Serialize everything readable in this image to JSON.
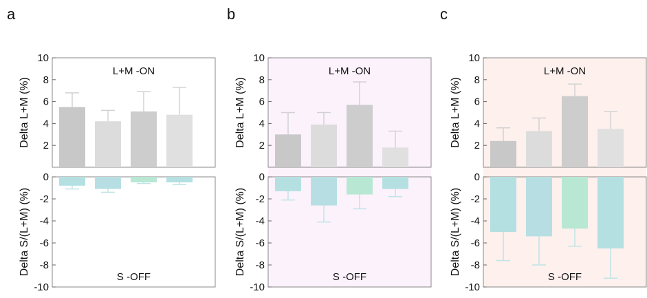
{
  "chart_data": [
    {
      "panel_label": "a",
      "background": "#ffffff",
      "top": {
        "type": "bar",
        "annotation": "L+M -ON",
        "ylabel": "Delta L+M (%)",
        "ylim": [
          0,
          10
        ],
        "yticks": [
          "2",
          "4",
          "6",
          "8",
          "10"
        ],
        "values": [
          5.5,
          4.2,
          5.1,
          4.8
        ],
        "errors": [
          1.3,
          1.0,
          1.8,
          2.5
        ],
        "colors": [
          "#c8c8c8",
          "#dcdcdc",
          "#cdcdcd",
          "#e0e0e0"
        ],
        "error_color": "#d2d2d2"
      },
      "bottom": {
        "type": "bar",
        "annotation": "S -OFF",
        "ylabel": "Delta S/(L+M) (%)",
        "ylim": [
          -10,
          0
        ],
        "yticks": [
          "0",
          "-2",
          "-4",
          "-6",
          "-8",
          "-10"
        ],
        "values": [
          -0.8,
          -1.1,
          -0.5,
          -0.5
        ],
        "errors": [
          0.3,
          0.3,
          0.1,
          0.2
        ],
        "colors": [
          "#b4e0e2",
          "#b7dfe3",
          "#b8e8d4",
          "#b5e0e2"
        ],
        "error_color": "#bfe4e6"
      }
    },
    {
      "panel_label": "b",
      "background": "#fcf2fc",
      "top": {
        "type": "bar",
        "annotation": "L+M -ON",
        "ylabel": "Delta L+M (%)",
        "ylim": [
          0,
          10
        ],
        "yticks": [
          "2",
          "4",
          "6",
          "8",
          "10"
        ],
        "values": [
          3.0,
          3.9,
          5.7,
          1.8
        ],
        "errors": [
          2.0,
          1.1,
          2.1,
          1.5
        ],
        "colors": [
          "#c8c8c8",
          "#dcdcdc",
          "#cdcdcd",
          "#e0e0e0"
        ],
        "error_color": "#d2d2d2"
      },
      "bottom": {
        "type": "bar",
        "annotation": "S -OFF",
        "ylabel": "Delta S/(L+M) (%)",
        "ylim": [
          -10,
          0
        ],
        "yticks": [
          "0",
          "-2",
          "-4",
          "-6",
          "-8",
          "-10"
        ],
        "values": [
          -1.3,
          -2.6,
          -1.6,
          -1.1
        ],
        "errors": [
          0.8,
          1.5,
          1.3,
          0.7
        ],
        "colors": [
          "#b4e0e2",
          "#b7dfe3",
          "#b8e8d4",
          "#b5e0e2"
        ],
        "error_color": "#bfe4e6"
      }
    },
    {
      "panel_label": "c",
      "background": "#fdf0ed",
      "top": {
        "type": "bar",
        "annotation": "L+M -ON",
        "ylabel": "Delta L+M (%)",
        "ylim": [
          0,
          10
        ],
        "yticks": [
          "2",
          "4",
          "6",
          "8",
          "10"
        ],
        "values": [
          2.4,
          3.3,
          6.5,
          3.5
        ],
        "errors": [
          1.2,
          1.2,
          1.1,
          1.6
        ],
        "colors": [
          "#c8c8c8",
          "#dcdcdc",
          "#cdcdcd",
          "#e0e0e0"
        ],
        "error_color": "#d2d2d2"
      },
      "bottom": {
        "type": "bar",
        "annotation": "S -OFF",
        "ylabel": "Delta S/(L+M) (%)",
        "ylim": [
          -10,
          0
        ],
        "yticks": [
          "0",
          "-2",
          "-4",
          "-6",
          "-8",
          "-10"
        ],
        "values": [
          -5.0,
          -5.4,
          -4.7,
          -6.5
        ],
        "errors": [
          2.6,
          2.6,
          1.6,
          2.7
        ],
        "colors": [
          "#b4e0e2",
          "#b7dfe3",
          "#b8e8d4",
          "#b5e0e2"
        ],
        "error_color": "#bfe4e6"
      }
    }
  ]
}
